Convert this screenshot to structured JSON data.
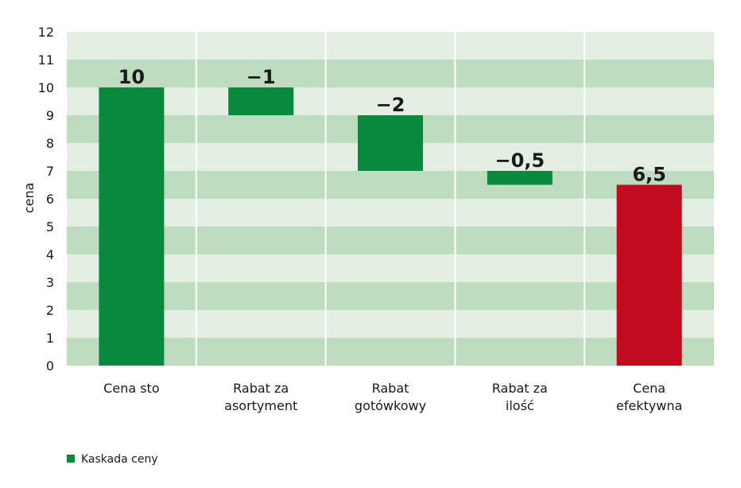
{
  "colors": {
    "band_dark": "#bedcbf",
    "band_light": "#e2efe2",
    "increase": "#078a3e",
    "decrease": "#078a3e",
    "total": "#c30b20",
    "text": "#1a1a1a"
  },
  "chart_data": {
    "type": "bar",
    "subtype": "waterfall",
    "title": "",
    "xlabel": "",
    "ylabel": "cena",
    "ylim": [
      0,
      12
    ],
    "yticks": [
      0,
      1,
      2,
      3,
      4,
      5,
      6,
      7,
      8,
      9,
      10,
      11,
      12
    ],
    "grid": "horizontal alternating bands",
    "categories": [
      [
        "Cena sto"
      ],
      [
        "Rabat za",
        "asortyment"
      ],
      [
        "Rabat",
        "gotówkowy"
      ],
      [
        "Rabat za",
        "ilość"
      ],
      [
        "Cena",
        "efektywna"
      ]
    ],
    "bars": [
      {
        "start": 0,
        "end": 10,
        "label": "10",
        "kind": "total_green"
      },
      {
        "start": 10,
        "end": 9,
        "label": "−1",
        "kind": "decrease"
      },
      {
        "start": 9,
        "end": 7,
        "label": "−2",
        "kind": "decrease"
      },
      {
        "start": 7,
        "end": 6.5,
        "label": "−0,5",
        "kind": "decrease"
      },
      {
        "start": 0,
        "end": 6.5,
        "label": "6,5",
        "kind": "total_red"
      }
    ],
    "legend": [
      {
        "label": "Kaskada ceny",
        "color": "#078a3e"
      }
    ],
    "legend_position": "bottom-left"
  }
}
